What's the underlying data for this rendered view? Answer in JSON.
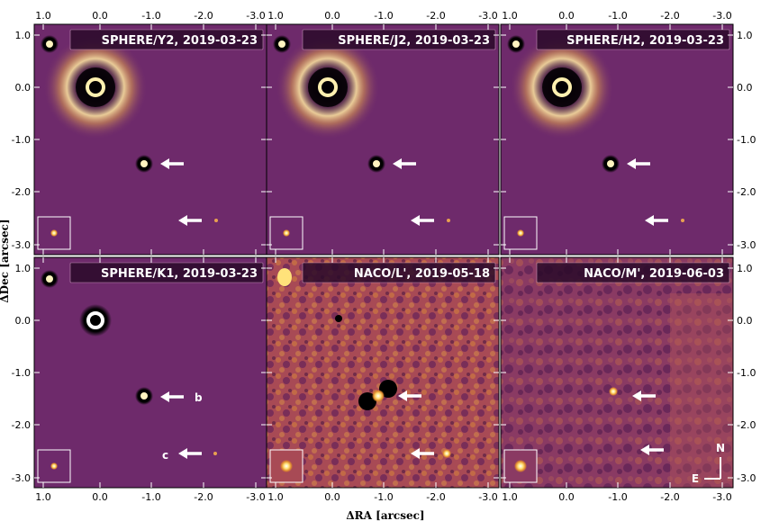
{
  "axes": {
    "xlabel": "ΔRA [arcsec]",
    "ylabel": "ΔDec [arcsec]",
    "x_ticks": [
      "1.0",
      "0.0",
      "-1.0",
      "-2.0",
      "-3.0"
    ],
    "y_ticks": [
      "1.0",
      "0.0",
      "-1.0",
      "-2.0",
      "-3.0"
    ]
  },
  "panels": [
    {
      "label": "SPHERE/Y2, 2019-03-23",
      "bg": "#6e2a6b",
      "star": "coronagraph"
    },
    {
      "label": "SPHERE/J2, 2019-03-23",
      "bg": "#6e2a6b",
      "star": "coronagraph"
    },
    {
      "label": "SPHERE/H2, 2019-03-23",
      "bg": "#6e2a6b",
      "star": "coronagraph"
    },
    {
      "label": "SPHERE/K1, 2019-03-23",
      "bg": "#6e2a6b",
      "star": "ring"
    },
    {
      "label": "NACO/L', 2019-05-18",
      "bg": "#a84a55",
      "star": "noise"
    },
    {
      "label": "NACO/M', 2019-06-03",
      "bg": "#8a3a63",
      "star": "noise"
    }
  ],
  "companions": {
    "b": "b",
    "c": "c"
  },
  "compass": {
    "north": "N",
    "east": "E"
  }
}
